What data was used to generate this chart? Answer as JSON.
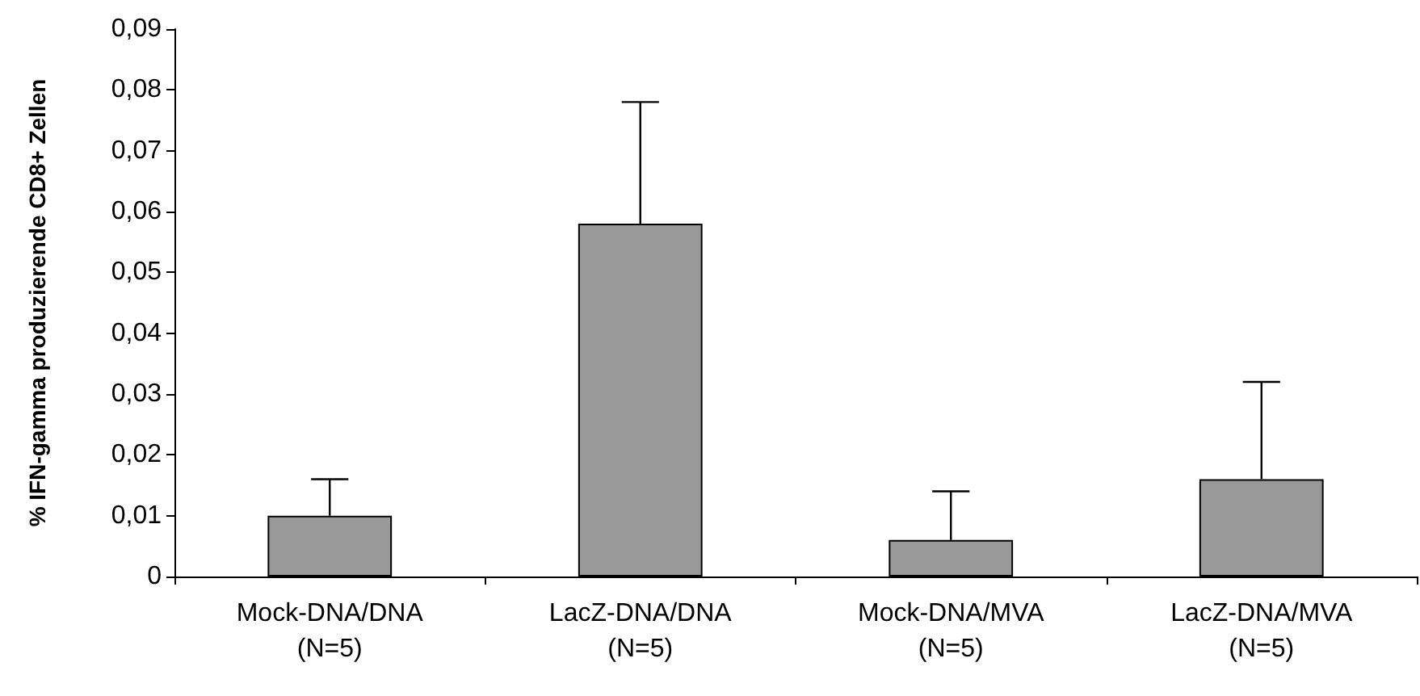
{
  "chart_data": {
    "type": "bar",
    "ylabel": "% IFN-gamma produzierende CD8+ Zellen",
    "categories": [
      "Mock-DNA/DNA\n(N=5)",
      "LacZ-DNA/DNA\n(N=5)",
      "Mock-DNA/MVA\n(N=5)",
      "LacZ-DNA/MVA\n(N=5)"
    ],
    "values": [
      0.01,
      0.058,
      0.006,
      0.016
    ],
    "errors": [
      [
        0.01,
        0.016
      ],
      [
        0.058,
        0.078
      ],
      [
        0.006,
        0.014
      ],
      [
        0.016,
        0.032
      ]
    ],
    "color": "#999999",
    "ylim": [
      0,
      0.09
    ],
    "yticks": [
      0,
      {
        "value": 0.01,
        "label": "0,01"
      },
      {
        "value": 0.02,
        "label": "0,02"
      },
      {
        "value": 0.03,
        "label": "0,03"
      },
      {
        "value": 0.04,
        "label": "0,04"
      },
      {
        "value": 0.05,
        "label": "0,05"
      },
      {
        "value": 0.06,
        "label": "0,06"
      },
      {
        "value": 0.07,
        "label": "0,07"
      },
      {
        "value": 0.08,
        "label": "0,08"
      },
      {
        "value": 0.09,
        "label": "0,09"
      }
    ],
    "grid": false
  }
}
